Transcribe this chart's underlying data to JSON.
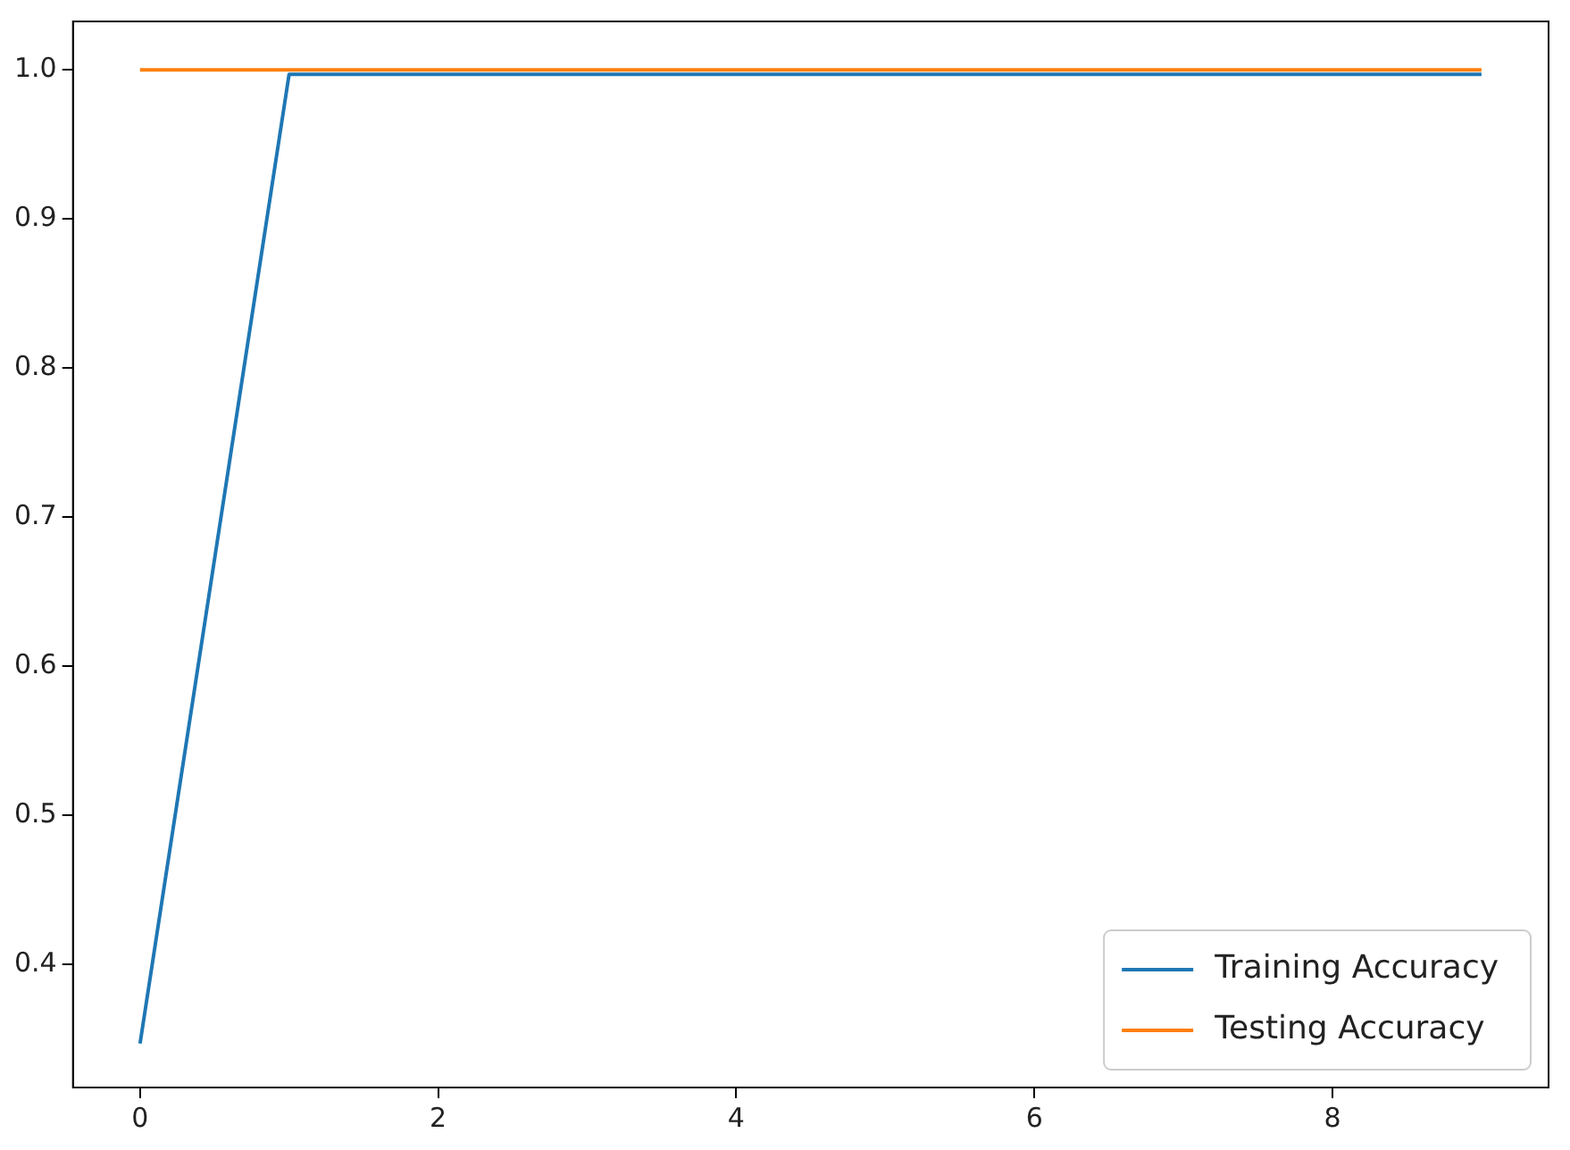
{
  "chart_data": {
    "type": "line",
    "x": [
      0,
      1,
      2,
      3,
      4,
      5,
      6,
      7,
      8,
      9
    ],
    "series": [
      {
        "name": "Training Accuracy",
        "color": "#1f77b4",
        "values": [
          0.347,
          0.997,
          0.997,
          0.997,
          0.997,
          0.997,
          0.997,
          0.997,
          0.997,
          0.997
        ]
      },
      {
        "name": "Testing Accuracy",
        "color": "#ff7f0e",
        "values": [
          1.0,
          1.0,
          1.0,
          1.0,
          1.0,
          1.0,
          1.0,
          1.0,
          1.0,
          1.0
        ]
      }
    ],
    "xlim": [
      -0.45,
      9.45
    ],
    "xticks": [
      0,
      2,
      4,
      6,
      8
    ],
    "ylim": [
      0.3175,
      1.0325
    ],
    "yticks": [
      0.4,
      0.5,
      0.6,
      0.7,
      0.8,
      0.9,
      {
        "value": 1,
        "label": "1.0"
      }
    ],
    "legend": "bottom right",
    "grid": false,
    "marker": "none",
    "line_style": "solid"
  }
}
